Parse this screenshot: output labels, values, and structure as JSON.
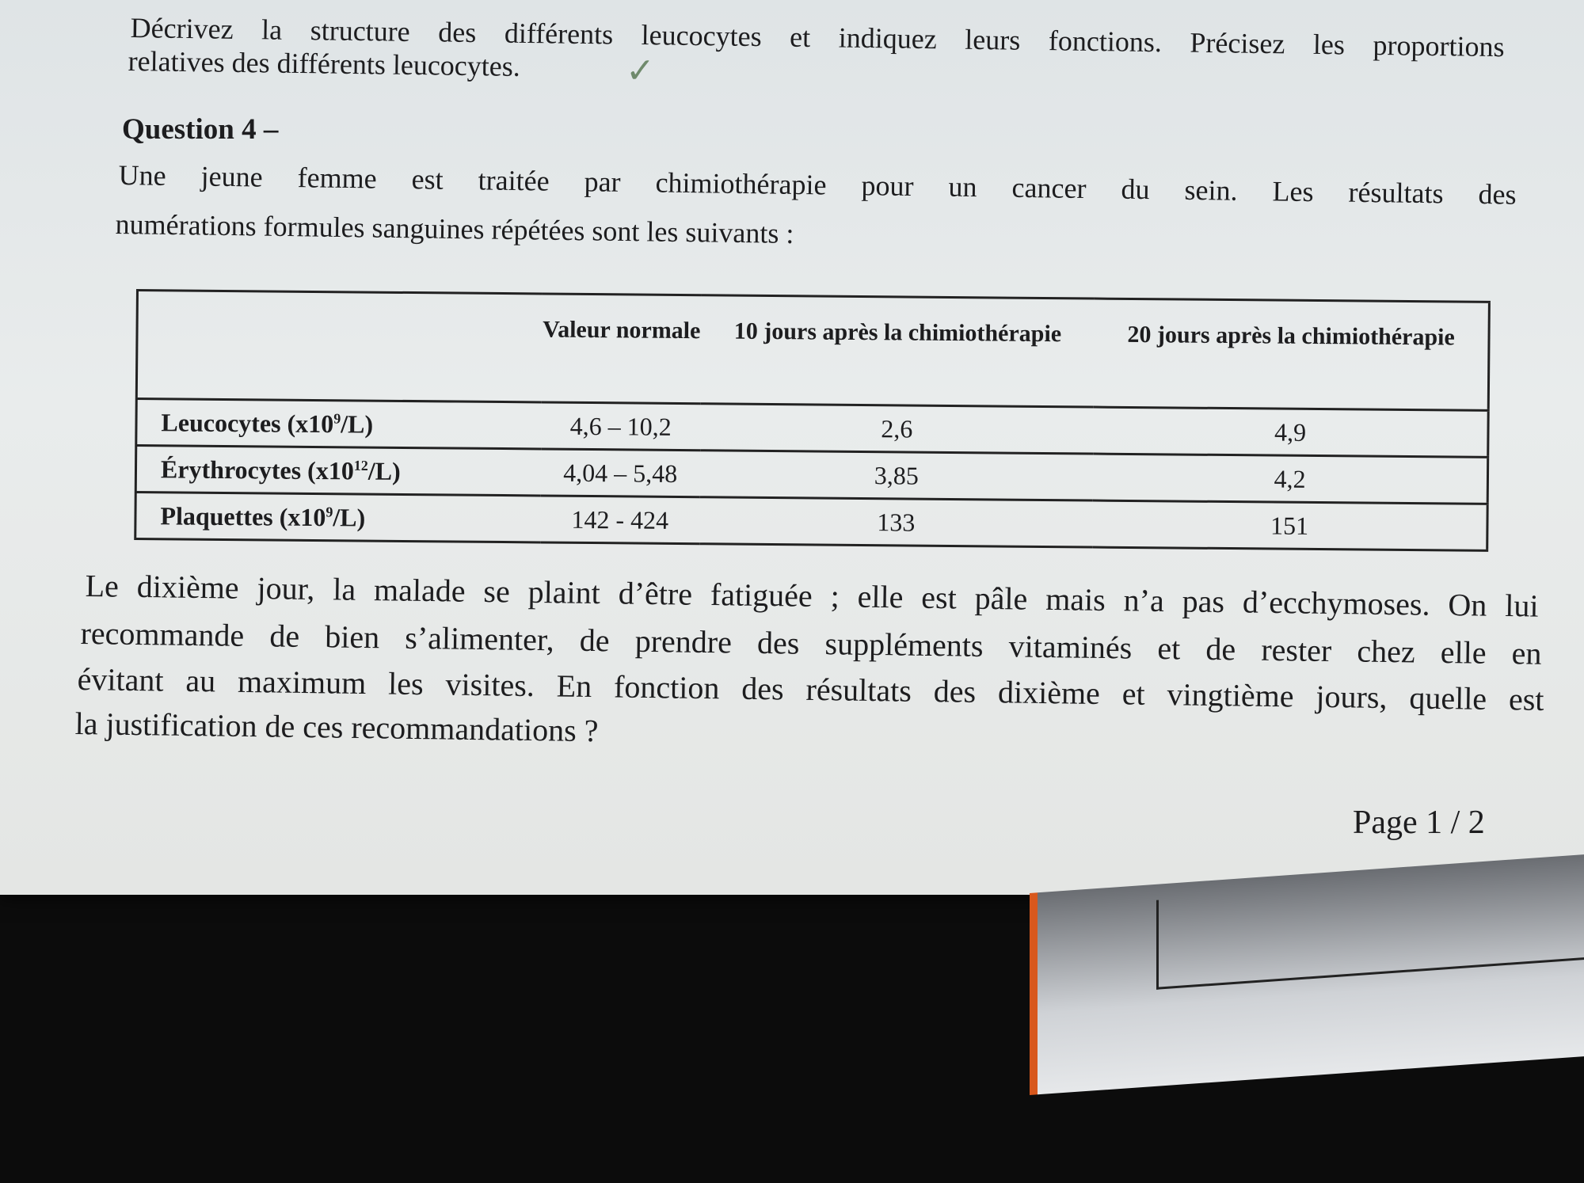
{
  "previous_question": {
    "line1": "Décrivez la structure des différents leucocytes et indiquez leurs fonctions. Précisez les proportions",
    "line2": "relatives des différents leucocytes.",
    "checkmark": "✓"
  },
  "question": {
    "title": "Question 4 –",
    "intro_line1": "Une jeune femme est traitée par chimiothérapie pour un cancer du sein. Les résultats des",
    "intro_line2": "numérations formules sanguines répétées sont les suivants :"
  },
  "table": {
    "headers": [
      "",
      "Valeur normale",
      "10 jours après la chimiothérapie",
      "20 jours après la chimiothérapie"
    ],
    "rows": [
      {
        "label": "Leucocytes (x10",
        "exp": "9",
        "unit": "/L)",
        "normal": "4,6 – 10,2",
        "day10": "2,6",
        "day20": "4,9"
      },
      {
        "label": "Érythrocytes (x10",
        "exp": "12",
        "unit": "/L)",
        "normal": "4,04 – 5,48",
        "day10": "3,85",
        "day20": "4,2"
      },
      {
        "label": "Plaquettes (x10",
        "exp": "9",
        "unit": "/L)",
        "normal": "142 - 424",
        "day10": "133",
        "day20": "151"
      }
    ]
  },
  "paragraph": {
    "line1": "Le dixième jour, la malade se plaint d’être fatiguée ; elle est pâle mais n’a pas d’ecchymoses. On lui",
    "line2": "recommande de bien s’alimenter, de prendre des suppléments vitaminés et de rester chez elle en",
    "line3": "évitant au maximum les visites. En fonction des résultats des dixième et vingtième jours, quelle est",
    "line4": "la justification de ces recommandations ?"
  },
  "footer": {
    "page": "Page 1 / 2"
  }
}
